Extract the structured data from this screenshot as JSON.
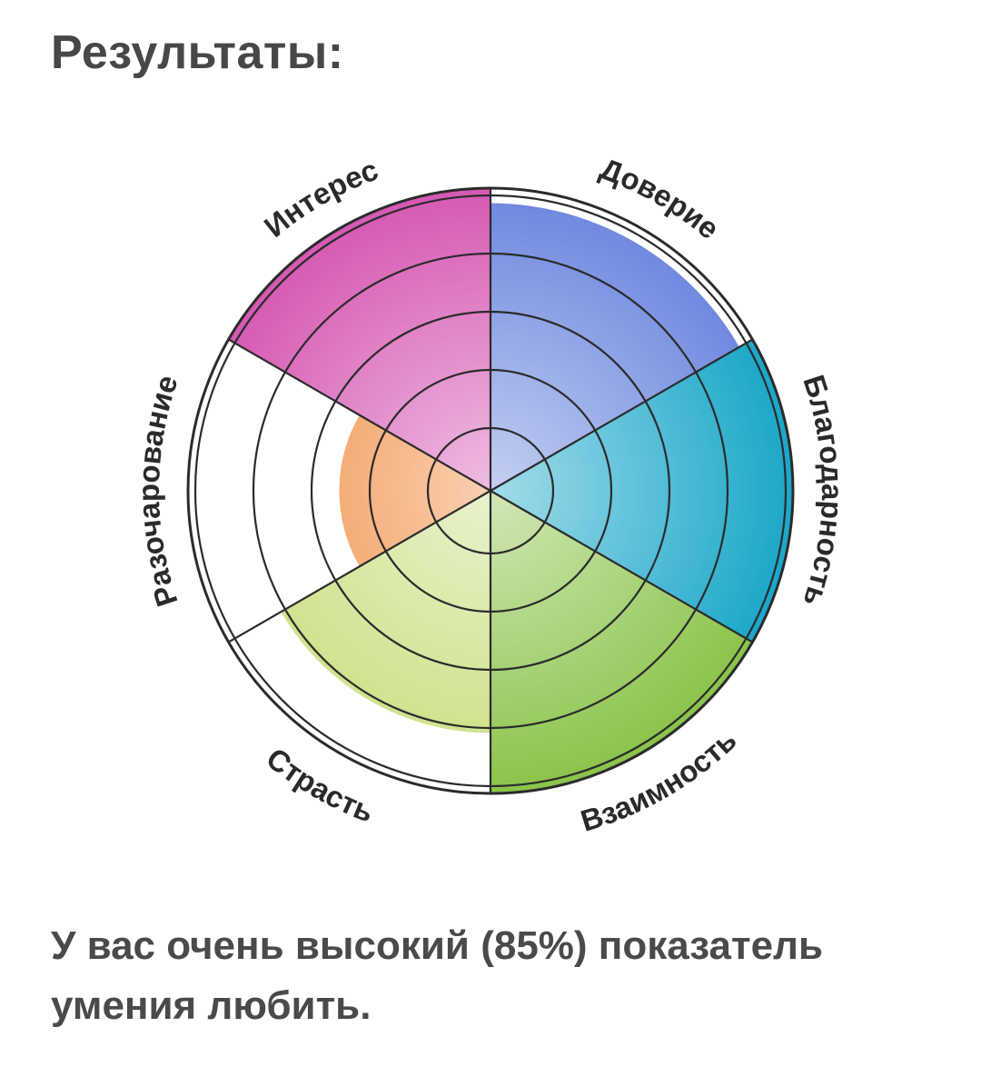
{
  "header": {
    "title": "Результаты:"
  },
  "result": {
    "text": "У вас очень высокий (85%) показатель умения любить."
  },
  "chart_data": {
    "type": "polar-area",
    "rings": 5,
    "max": 5,
    "categories": [
      "Доверие",
      "Благодарность",
      "Взаимность",
      "Страсть",
      "Разочарование",
      "Интерес"
    ],
    "values": [
      4.75,
      5,
      5,
      4,
      2.5,
      5
    ],
    "colors": [
      "#6b86de",
      "#1aa7c9",
      "#8bc34a",
      "#c9df7f",
      "#f08a3c",
      "#d659b4"
    ]
  }
}
